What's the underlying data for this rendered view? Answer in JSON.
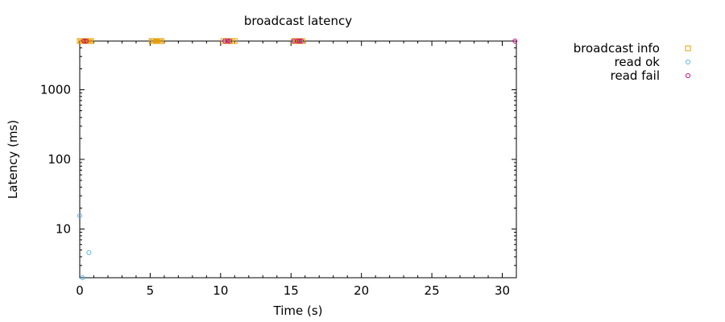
{
  "chart_data": {
    "type": "scatter",
    "title": "broadcast latency",
    "xlabel": "Time (s)",
    "ylabel": "Latency (ms)",
    "xlim": [
      0,
      31
    ],
    "ylim": [
      2,
      5000
    ],
    "yscale": "log",
    "grid": false,
    "legend_position": "top-right-outside",
    "x_ticks": [
      0,
      5,
      10,
      15,
      20,
      25,
      30
    ],
    "x_tick_labels": [
      "0",
      "5",
      "10",
      "15",
      "20",
      "25",
      "30"
    ],
    "y_ticks": [
      10,
      100,
      1000
    ],
    "y_tick_labels": [
      "10",
      "100",
      "1000"
    ],
    "series": [
      {
        "name": "broadcast info",
        "marker": "square",
        "color": "#e69f00",
        "points": [
          {
            "x": 0.0,
            "y": 5000
          },
          {
            "x": 0.1,
            "y": 5000
          },
          {
            "x": 0.2,
            "y": 5000
          },
          {
            "x": 0.3,
            "y": 5000
          },
          {
            "x": 0.4,
            "y": 5000
          },
          {
            "x": 0.5,
            "y": 5000
          },
          {
            "x": 0.6,
            "y": 5000
          },
          {
            "x": 0.7,
            "y": 5000
          },
          {
            "x": 0.8,
            "y": 5000
          },
          {
            "x": 5.1,
            "y": 5000
          },
          {
            "x": 5.2,
            "y": 5000
          },
          {
            "x": 5.3,
            "y": 5000
          },
          {
            "x": 5.4,
            "y": 5000
          },
          {
            "x": 5.5,
            "y": 5000
          },
          {
            "x": 5.6,
            "y": 5000
          },
          {
            "x": 5.7,
            "y": 5000
          },
          {
            "x": 5.8,
            "y": 5000
          },
          {
            "x": 10.2,
            "y": 5000
          },
          {
            "x": 10.4,
            "y": 5000
          },
          {
            "x": 10.6,
            "y": 5000
          },
          {
            "x": 10.8,
            "y": 5000
          },
          {
            "x": 11.0,
            "y": 5000
          },
          {
            "x": 15.2,
            "y": 5000
          },
          {
            "x": 15.4,
            "y": 5000
          },
          {
            "x": 15.6,
            "y": 5000
          },
          {
            "x": 15.8,
            "y": 5000
          }
        ]
      },
      {
        "name": "read ok",
        "marker": "circle",
        "color": "#56b4e9",
        "points": [
          {
            "x": 0.0,
            "y": 15.5
          },
          {
            "x": 0.2,
            "y": 2.0
          },
          {
            "x": 0.65,
            "y": 4.6
          }
        ]
      },
      {
        "name": "read fail",
        "marker": "circle",
        "color": "#cc0077",
        "points": [
          {
            "x": 0.3,
            "y": 5000
          },
          {
            "x": 0.45,
            "y": 5000
          },
          {
            "x": 10.3,
            "y": 5000
          },
          {
            "x": 10.5,
            "y": 5000
          },
          {
            "x": 10.65,
            "y": 5000
          },
          {
            "x": 15.2,
            "y": 5000
          },
          {
            "x": 15.45,
            "y": 5000
          },
          {
            "x": 15.6,
            "y": 5000
          },
          {
            "x": 15.75,
            "y": 5000
          },
          {
            "x": 30.9,
            "y": 5000
          }
        ]
      }
    ]
  }
}
